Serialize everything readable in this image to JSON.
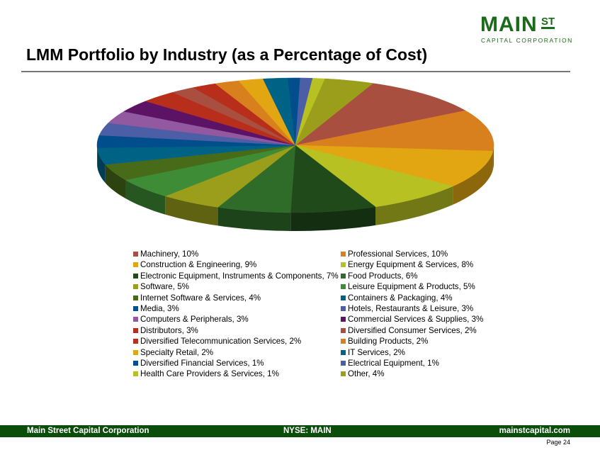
{
  "logo": {
    "main": "MAIN",
    "st": "ST",
    "sub": "CAPITAL CORPORATION"
  },
  "title": "LMM Portfolio by Industry (as a Percentage of Cost)",
  "chart_data": {
    "type": "pie",
    "style": "3d",
    "legend_placement": "bottom",
    "categories": [
      "Machinery",
      "Professional Services",
      "Construction & Engineering",
      "Energy Equipment & Services",
      "Electronic Equipment, Instruments & Components",
      "Food Products",
      "Software",
      "Leisure Equipment & Products",
      "Internet Software & Services",
      "Containers & Packaging",
      "Media",
      "Hotels, Restaurants & Leisure",
      "Computers & Peripherals",
      "Commercial Services & Supplies",
      "Distributors",
      "Diversified Consumer Services",
      "Diversified Telecommunication Services",
      "Building Products",
      "Specialty Retail",
      "IT Services",
      "Diversified Financial Services",
      "Electrical Equipment",
      "Health Care Providers & Services",
      "Other"
    ],
    "values": [
      10,
      10,
      9,
      8,
      7,
      6,
      5,
      5,
      4,
      4,
      3,
      3,
      3,
      3,
      3,
      2,
      2,
      2,
      2,
      2,
      1,
      1,
      1,
      4
    ],
    "legend_labels": [
      "Machinery, 10%",
      "Professional Services, 10%",
      "Construction & Engineering, 9%",
      "Energy Equipment & Services, 8%",
      "Electronic Equipment, Instruments & Components, 7%",
      "Food Products, 6%",
      "Software, 5%",
      "Leisure Equipment & Products, 5%",
      "Internet Software & Services, 4%",
      "Containers & Packaging, 4%",
      "Media, 3%",
      "Hotels, Restaurants & Leisure, 3%",
      "Computers & Peripherals, 3%",
      "Commercial Services & Supplies, 3%",
      "Distributors, 3%",
      "Diversified Consumer Services, 2%",
      "Diversified Telecommunication Services, 2%",
      "Building Products, 2%",
      "Specialty Retail, 2%",
      "IT Services, 2%",
      "Diversified Financial Services, 1%",
      "Electrical Equipment, 1%",
      "Health Care Providers & Services, 1%",
      "Other, 4%"
    ],
    "colors": [
      "#a94f3f",
      "#d9801e",
      "#e2a612",
      "#b7c122",
      "#214a1b",
      "#2f6c2a",
      "#9a9e1a",
      "#3f8c36",
      "#476b18",
      "#006385",
      "#004f8c",
      "#4c5ea5",
      "#9259a0",
      "#5c1366",
      "#b72e1a",
      "#a94f3f",
      "#b72e1a",
      "#d9801e",
      "#e2a612",
      "#006385",
      "#004f8c",
      "#4c5ea5",
      "#b7c122",
      "#9a9e1a"
    ]
  },
  "footer": {
    "left": "Main Street Capital Corporation",
    "center": "NYSE: MAIN",
    "right": "mainstcapital.com",
    "page": "Page  24"
  }
}
